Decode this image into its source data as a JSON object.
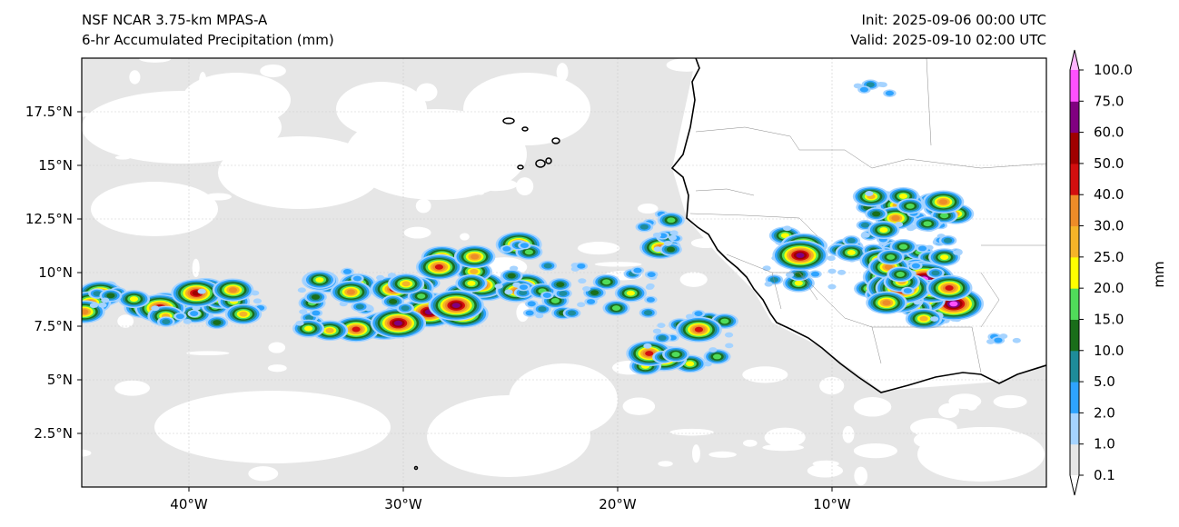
{
  "header": {
    "title_line1": "NSF NCAR 3.75-km MPAS-A",
    "title_line2": "6-hr Accumulated Precipitation (mm)",
    "init": "Init: 2025-09-06 00:00 UTC",
    "valid": "Valid: 2025-09-10 02:00 UTC"
  },
  "chart_data": {
    "type": "heatmap",
    "title": "6-hr Accumulated Precipitation (mm)",
    "extent": {
      "lon": [
        -45,
        0
      ],
      "lat": [
        0,
        20
      ]
    },
    "x_ticks": [
      {
        "value": -40,
        "label": "40°W"
      },
      {
        "value": -30,
        "label": "30°W"
      },
      {
        "value": -20,
        "label": "20°W"
      },
      {
        "value": -10,
        "label": "10°W"
      }
    ],
    "y_ticks": [
      {
        "value": 2.5,
        "label": "2.5°N"
      },
      {
        "value": 5,
        "label": "5°N"
      },
      {
        "value": 7.5,
        "label": "7.5°N"
      },
      {
        "value": 10,
        "label": "10°N"
      },
      {
        "value": 12.5,
        "label": "12.5°N"
      },
      {
        "value": 15,
        "label": "15°N"
      },
      {
        "value": 17.5,
        "label": "17.5°N"
      }
    ],
    "grid": true,
    "colorbar": {
      "label": "mm",
      "extend": "both",
      "levels": [
        "0.1",
        "1.0",
        "2.0",
        "5.0",
        "10.0",
        "15.0",
        "20.0",
        "25.0",
        "30.0",
        "40.0",
        "50.0",
        "60.0",
        "75.0",
        "100.0"
      ],
      "colors": [
        "#e6e6e6",
        "#a5d3ff",
        "#2ea3ff",
        "#1e8c9a",
        "#1a6e1a",
        "#50dc5a",
        "#ffff00",
        "#f5b428",
        "#ee8c28",
        "#d20f0f",
        "#a00000",
        "#800080",
        "#ff50ff"
      ],
      "over_color": "#ffb4ff",
      "under_color": "#ffffff"
    }
  }
}
